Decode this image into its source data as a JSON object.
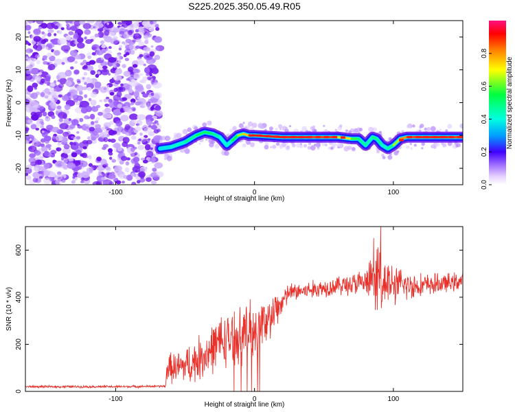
{
  "title": "S225.2025.350.05.49.R05",
  "chart_data": [
    {
      "type": "heatmap",
      "xlabel": "Height of straight line (km)",
      "ylabel": "Frequency (Hz)",
      "xlim": [
        -165,
        150
      ],
      "ylim": [
        -25,
        25
      ],
      "xticks": [
        -100,
        0,
        100
      ],
      "yticks": [
        -20,
        -10,
        0,
        10,
        20
      ],
      "colorbar": {
        "label": "Normalized spectral amplitude",
        "range": [
          0,
          1
        ],
        "ticks": [
          "0.0",
          "0.2",
          "0.4",
          "0.6",
          "0.8"
        ]
      },
      "noise_region_x": [
        -165,
        -68
      ],
      "ridge": {
        "x": [
          -68,
          -60,
          -50,
          -42,
          -36,
          -30,
          -25,
          -20,
          -16,
          -12,
          -8,
          -4,
          0,
          20,
          40,
          60,
          70,
          75,
          80,
          85,
          88,
          92,
          96,
          100,
          105,
          110,
          120,
          130,
          140,
          150
        ],
        "freq": [
          -14,
          -13.5,
          -12,
          -10,
          -9,
          -9.5,
          -10.5,
          -13,
          -11.5,
          -10,
          -9.5,
          -10,
          -10,
          -10.5,
          -10.5,
          -10.5,
          -11,
          -11,
          -13,
          -10.5,
          -11,
          -13,
          -14,
          -13,
          -11,
          -10.5,
          -10.5,
          -10.5,
          -10.5,
          -10.5
        ],
        "amplitude": [
          0.35,
          0.4,
          0.45,
          0.5,
          0.55,
          0.5,
          0.45,
          0.35,
          0.5,
          0.6,
          0.7,
          0.8,
          0.9,
          0.9,
          0.9,
          0.85,
          0.6,
          0.55,
          0.4,
          0.5,
          0.5,
          0.45,
          0.4,
          0.55,
          0.75,
          0.85,
          0.9,
          0.9,
          0.9,
          0.85
        ]
      },
      "grid": false
    },
    {
      "type": "line",
      "xlabel": "Height of straight line (km)",
      "ylabel": "SNR (10 * v/v)",
      "xlim": [
        -165,
        150
      ],
      "ylim": [
        0,
        700
      ],
      "xticks": [
        -100,
        0,
        100
      ],
      "yticks": [
        0,
        200,
        400,
        600
      ],
      "color": "#e8312b",
      "series": [
        {
          "x": [
            -165,
            -100,
            -64,
            -63,
            -55,
            -45,
            -35,
            -25,
            -15,
            -5,
            0,
            10,
            15,
            20,
            25,
            40,
            60,
            80,
            90,
            100,
            120,
            140,
            150
          ],
          "values": [
            20,
            20,
            22,
            100,
            100,
            120,
            160,
            210,
            230,
            250,
            270,
            300,
            340,
            380,
            420,
            430,
            450,
            460,
            480,
            450,
            450,
            460,
            470
          ],
          "spread": [
            5,
            5,
            5,
            60,
            70,
            90,
            100,
            110,
            110,
            120,
            130,
            100,
            80,
            60,
            40,
            40,
            40,
            60,
            150,
            80,
            50,
            40,
            40
          ]
        }
      ],
      "grid": false
    }
  ]
}
